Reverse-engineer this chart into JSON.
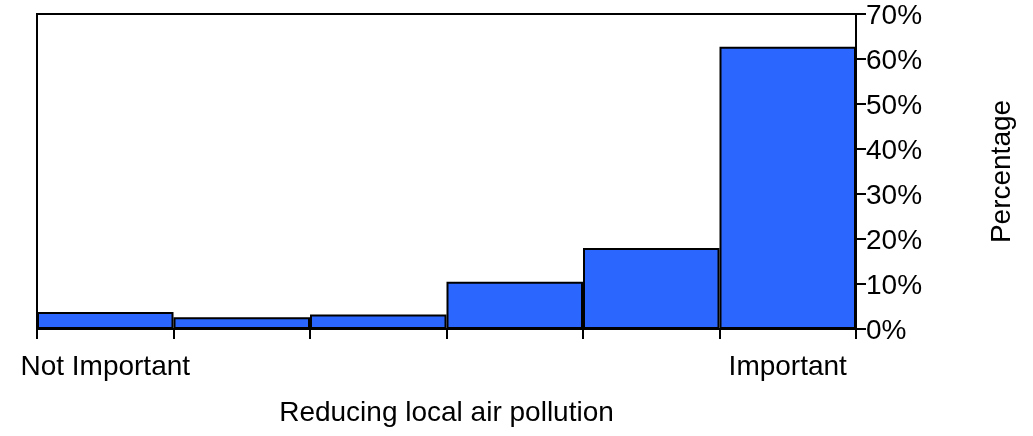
{
  "chart_data": {
    "type": "bar",
    "xlabel": "Reducing local air pollution",
    "ylabel": "Percentage",
    "categories": [
      "Not Important",
      null,
      null,
      null,
      null,
      "Important"
    ],
    "values": [
      3.8,
      2.6,
      3.2,
      10.5,
      18.0,
      62.7
    ],
    "color": "#2b67fe",
    "ylim": [
      0,
      70
    ],
    "yticks": [
      {
        "value": 0,
        "label": "0%"
      },
      {
        "value": 10,
        "label": "10%"
      },
      {
        "value": 20,
        "label": "20%"
      },
      {
        "value": 30,
        "label": "30%"
      },
      {
        "value": 40,
        "label": "40%"
      },
      {
        "value": 50,
        "label": "50%"
      },
      {
        "value": 60,
        "label": "60%"
      },
      {
        "value": 70,
        "label": "70%"
      }
    ],
    "grid": false
  }
}
